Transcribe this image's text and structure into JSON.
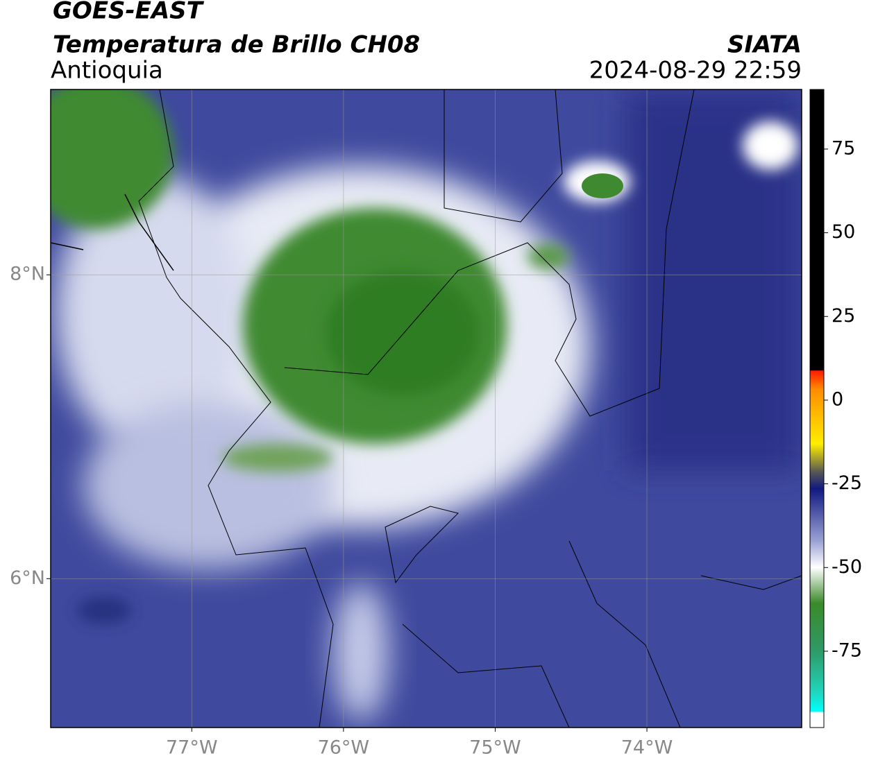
{
  "chart_data": {
    "type": "map",
    "title": "GOES-EAST",
    "subtitle": "Temperatura de Brillo CH08",
    "region": "Antioquia",
    "source": "SIATA",
    "timestamp": "2024-08-29 22:59",
    "xlim": [
      -77.93,
      -72.98
    ],
    "xticks": [
      {
        "value": -77,
        "label": "77°W"
      },
      {
        "value": -76,
        "label": "76°W"
      },
      {
        "value": -75,
        "label": "75°W"
      },
      {
        "value": -74,
        "label": "74°W"
      }
    ],
    "ylim": [
      5.02,
      9.22
    ],
    "yticks": [
      {
        "value": 6,
        "label": "6°N"
      },
      {
        "value": 8,
        "label": "8°N"
      }
    ],
    "grid": true,
    "colorbar": {
      "lim": [
        -97.8,
        92.8
      ],
      "ticks": [
        75,
        50,
        25,
        0,
        -25,
        -50,
        -75
      ]
    }
  }
}
